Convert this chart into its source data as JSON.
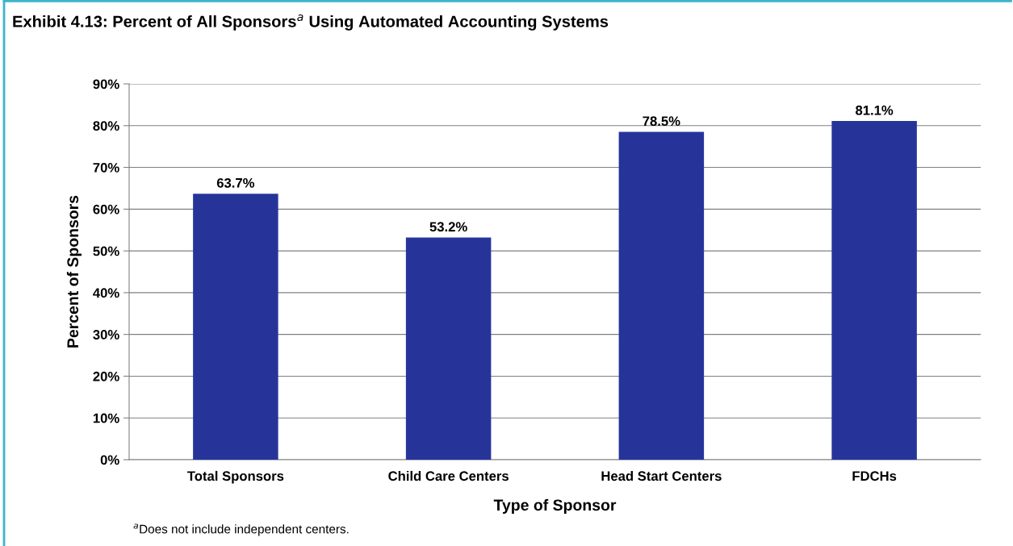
{
  "chart_data": {
    "type": "bar",
    "title": "Exhibit 4.13: Percent of All Sponsors$^{a}$ Using Automated Accounting Systems",
    "xlabel": "Type of Sponsor",
    "ylabel": "Percent of Sponsors",
    "categories": [
      "Total Sponsors",
      "Child Care Centers",
      "Head Start Centers",
      "FDCHs"
    ],
    "values": [
      63.7,
      53.2,
      78.5,
      81.1
    ],
    "color": "#26349a",
    "value_labels": [
      "63.7%",
      "53.2%",
      "78.5%",
      "81.1%"
    ],
    "ylim": [
      0,
      90
    ],
    "yticks": [
      {
        "value": 0,
        "label": "0%"
      },
      {
        "value": 10,
        "label": "10%"
      },
      {
        "value": 20,
        "label": "20%"
      },
      {
        "value": 30,
        "label": "30%"
      },
      {
        "value": 40,
        "label": "40%"
      },
      {
        "value": 50,
        "label": "50%"
      },
      {
        "value": 60,
        "label": "60%"
      },
      {
        "value": 70,
        "label": "70%"
      },
      {
        "value": 80,
        "label": "80%"
      },
      {
        "value": 90,
        "label": "90%"
      }
    ],
    "grid": "y",
    "annotations": [
      "$^{a}$Does not include independent centers."
    ]
  }
}
